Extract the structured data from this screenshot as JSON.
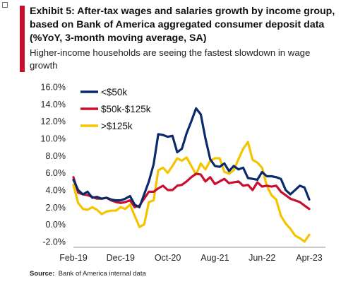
{
  "header": {
    "title": "Exhibit 5: After-tax wages and salaries growth by income group, based on Bank  of America aggregated consumer deposit data (%YoY, 3-month moving average, SA)",
    "subtitle": "Higher-income households are seeing the fastest slowdown in wage growth",
    "accent_color": "#c8102e"
  },
  "footer": {
    "source_label": "Source:",
    "source_text": "Bank of America internal data"
  },
  "chart_data": {
    "type": "line",
    "title": "",
    "xlabel": "",
    "ylabel": "",
    "ylim": [
      -2.0,
      16.0
    ],
    "y_ticks": [
      "16.0%",
      "14.0%",
      "12.0%",
      "10.0%",
      "8.0%",
      "6.0%",
      "4.0%",
      "2.0%",
      "0.0%",
      "-2.0%"
    ],
    "y_tick_values": [
      16,
      14,
      12,
      10,
      8,
      6,
      4,
      2,
      0,
      -2
    ],
    "x_tick_labels": [
      "Feb-19",
      "Dec-19",
      "Oct-20",
      "Aug-21",
      "Jun-22",
      "Apr-23"
    ],
    "x_tick_months": [
      "2019-02",
      "2019-12",
      "2020-10",
      "2021-08",
      "2022-06",
      "2023-04"
    ],
    "x": [
      "2019-02",
      "2019-03",
      "2019-04",
      "2019-05",
      "2019-06",
      "2019-07",
      "2019-08",
      "2019-09",
      "2019-10",
      "2019-11",
      "2019-12",
      "2020-01",
      "2020-02",
      "2020-03",
      "2020-04",
      "2020-05",
      "2020-06",
      "2020-07",
      "2020-08",
      "2020-09",
      "2020-10",
      "2020-11",
      "2020-12",
      "2021-01",
      "2021-02",
      "2021-03",
      "2021-04",
      "2021-05",
      "2021-06",
      "2021-07",
      "2021-08",
      "2021-09",
      "2021-10",
      "2021-11",
      "2021-12",
      "2022-01",
      "2022-02",
      "2022-03",
      "2022-04",
      "2022-05",
      "2022-06",
      "2022-07",
      "2022-08",
      "2022-09",
      "2022-10",
      "2022-11",
      "2022-12",
      "2023-01",
      "2023-02",
      "2023-03",
      "2023-04"
    ],
    "grid": false,
    "legend_position": "top-left",
    "series": [
      {
        "name": "<$50k",
        "color": "#0b2a6b",
        "values": [
          5.2,
          4.0,
          3.5,
          3.8,
          3.1,
          3.2,
          3.0,
          3.1,
          2.9,
          2.8,
          2.8,
          3.0,
          3.3,
          2.3,
          2.0,
          3.5,
          5.0,
          7.0,
          10.5,
          10.4,
          10.2,
          10.3,
          8.4,
          8.8,
          10.6,
          12.0,
          13.5,
          12.8,
          10.0,
          7.6,
          6.8,
          6.7,
          7.1,
          6.2,
          6.8,
          6.4,
          6.6,
          5.4,
          5.3,
          5.2,
          6.1,
          5.6,
          5.6,
          5.5,
          5.3,
          4.0,
          3.5,
          4.0,
          4.5,
          4.3,
          2.9
        ]
      },
      {
        "name": "$50k-$125k",
        "color": "#c8102e",
        "values": [
          5.5,
          3.7,
          3.5,
          3.4,
          3.2,
          3.0,
          3.0,
          3.1,
          2.8,
          2.6,
          2.5,
          2.6,
          2.8,
          2.0,
          2.2,
          3.0,
          3.8,
          3.8,
          4.2,
          4.5,
          4.0,
          4.0,
          4.5,
          4.6,
          5.0,
          5.5,
          5.9,
          5.8,
          5.0,
          5.5,
          4.7,
          5.0,
          5.3,
          4.8,
          4.9,
          5.0,
          4.5,
          4.6,
          4.0,
          4.9,
          4.4,
          4.5,
          4.4,
          4.5,
          3.8,
          3.4,
          3.0,
          2.8,
          2.6,
          2.2,
          1.8
        ]
      },
      {
        "name": ">$125k",
        "color": "#f5c400",
        "values": [
          4.6,
          2.5,
          1.8,
          1.7,
          2.0,
          1.7,
          1.2,
          1.5,
          1.6,
          1.6,
          2.0,
          1.8,
          2.3,
          1.0,
          -0.3,
          0.0,
          2.6,
          2.8,
          6.3,
          6.6,
          6.0,
          6.8,
          7.7,
          7.4,
          7.8,
          6.8,
          5.8,
          7.1,
          6.4,
          7.4,
          7.7,
          7.7,
          6.1,
          5.9,
          6.3,
          7.6,
          8.8,
          9.6,
          7.5,
          7.2,
          6.6,
          4.5,
          3.4,
          2.9,
          1.0,
          0.1,
          -0.5,
          -1.3,
          -1.6,
          -2.0,
          -1.2
        ]
      }
    ]
  }
}
